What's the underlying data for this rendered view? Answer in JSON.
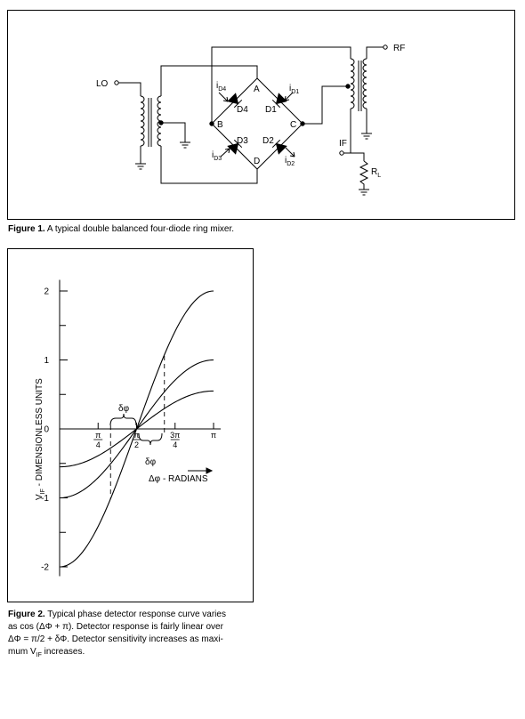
{
  "figure1": {
    "label": "Figure 1.",
    "caption": "A typical double balanced four-diode ring mixer.",
    "ports": {
      "lo": "LO",
      "rf": "RF",
      "if": "IF",
      "load_main": "R",
      "load_sub": "L"
    },
    "nodes": {
      "a": "A",
      "b": "B",
      "c": "C",
      "d": "D"
    },
    "diodes": {
      "d1": "D1",
      "d2": "D2",
      "d3": "D3",
      "d4": "D4"
    },
    "currents": {
      "d1": {
        "main": "i",
        "sub": "D1"
      },
      "d2": {
        "main": "i",
        "sub": "D2"
      },
      "d3": {
        "main": "i",
        "sub": "D3"
      },
      "d4": {
        "main": "i",
        "sub": "D4"
      }
    }
  },
  "figure2": {
    "label": "Figure 2.",
    "caption_lines": [
      "Typical phase detector response curve varies",
      "as cos (ΔΦ + π). Detector response is fairly linear over",
      "ΔΦ = π/2 + δΦ. Detector sensitivity increases as maxi-",
      "mum V",
      "IF",
      " increases."
    ],
    "y_axis_label": {
      "main": "V",
      "sub": "IF",
      "rest": " - DIMENSIONLESS UNITS"
    },
    "x_axis_label": "Δφ - RADIANS",
    "delta_label": "δφ",
    "chart_data": {
      "type": "line",
      "series": [
        {
          "amplitude": 2,
          "x": [
            0,
            0.3927,
            0.7854,
            1.1781,
            1.5708,
            1.9635,
            2.3562,
            2.7489,
            3.1416
          ],
          "y": [
            -2.0,
            -1.848,
            -1.414,
            -0.765,
            0.0,
            0.765,
            1.414,
            1.848,
            2.0
          ]
        },
        {
          "amplitude": 1,
          "x": [
            0,
            0.3927,
            0.7854,
            1.1781,
            1.5708,
            1.9635,
            2.3562,
            2.7489,
            3.1416
          ],
          "y": [
            -1.0,
            -0.924,
            -0.707,
            -0.383,
            0.0,
            0.383,
            0.707,
            0.924,
            1.0
          ]
        },
        {
          "amplitude": 0.55,
          "x": [
            0,
            0.3927,
            0.7854,
            1.1781,
            1.5708,
            1.9635,
            2.3562,
            2.7489,
            3.1416
          ],
          "y": [
            -0.55,
            -0.508,
            -0.389,
            -0.21,
            0.0,
            0.21,
            0.389,
            0.508,
            0.55
          ]
        }
      ],
      "xlim": [
        0,
        3.1416
      ],
      "ylim": [
        -2.2,
        2.2
      ],
      "y_ticks": [
        2,
        1,
        0,
        -1,
        -2
      ],
      "y_tick_labels": [
        "2",
        "1",
        "0",
        "-1",
        "-2"
      ],
      "x_ticks": [
        {
          "value": 0.7854,
          "num": "π",
          "den": "4"
        },
        {
          "value": 1.5708,
          "num": "π",
          "den": "2"
        },
        {
          "value": 2.3562,
          "num": "3π",
          "den": "4"
        },
        {
          "value": 3.1416,
          "num": "π",
          "den": ""
        }
      ],
      "grid": false,
      "legend": "none"
    }
  }
}
